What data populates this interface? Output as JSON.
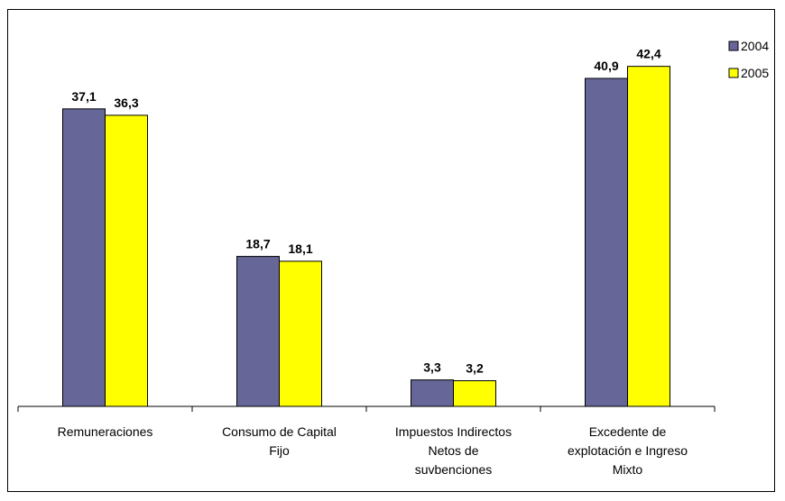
{
  "chart_data": {
    "type": "bar",
    "categories": [
      [
        "Remuneraciones"
      ],
      [
        "Consumo de Capital",
        "Fijo"
      ],
      [
        "Impuestos Indirectos",
        "Netos de",
        "suvbenciones"
      ],
      [
        "Excedente de",
        "explotación e Ingreso",
        "Mixto"
      ]
    ],
    "series": [
      {
        "name": "2004",
        "values": [
          37.1,
          18.7,
          3.3,
          40.9
        ],
        "labels": [
          "37,1",
          "18,7",
          "3,3",
          "40,9"
        ],
        "color": "#666699"
      },
      {
        "name": "2005",
        "values": [
          36.3,
          18.1,
          3.2,
          42.4
        ],
        "labels": [
          "36,3",
          "18,1",
          "3,2",
          "42,4"
        ],
        "color": "#FFFF00"
      }
    ],
    "ylim": [
      0,
      45
    ],
    "grid": false,
    "legend": "top-right"
  }
}
